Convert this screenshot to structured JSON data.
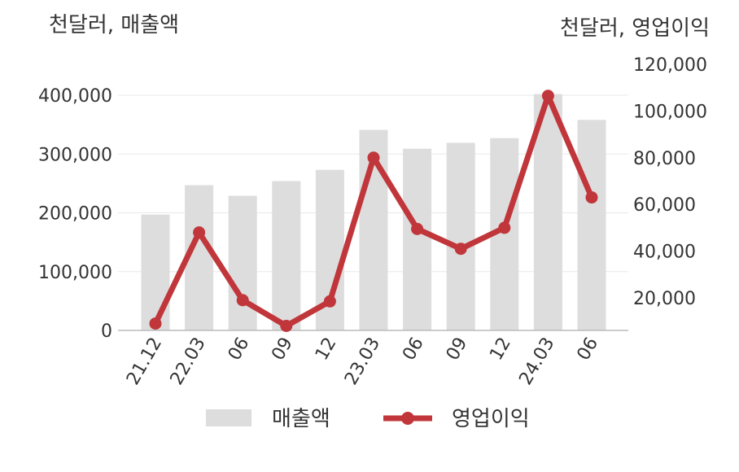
{
  "chart_data": {
    "type": "bar+line",
    "left_unit": "천달러, 매출액",
    "right_unit": "천달러, 영업이익",
    "categories": [
      "21.12",
      "22.03",
      "06",
      "09",
      "12",
      "23.03",
      "06",
      "09",
      "12",
      "24.03",
      "06"
    ],
    "series": [
      {
        "name": "매출액",
        "type": "bar",
        "axis": "left",
        "values": [
          197000,
          247000,
          229000,
          254000,
          273000,
          341000,
          309000,
          319000,
          327000,
          402000,
          358000
        ]
      },
      {
        "name": "영업이익",
        "type": "line",
        "axis": "right",
        "values": [
          9000,
          48000,
          19000,
          8000,
          18500,
          80000,
          49500,
          41000,
          50000,
          106500,
          63000
        ]
      }
    ],
    "left_axis": {
      "min": 0,
      "max": 400000,
      "ticks": [
        "0",
        "100,000",
        "200,000",
        "300,000",
        "400,000"
      ]
    },
    "right_axis": {
      "ticks": [
        "20,000",
        "40,000",
        "60,000",
        "80,000",
        "100,000",
        "120,000"
      ]
    },
    "legend_position": "bottom",
    "grid": true,
    "colors": {
      "bar": "#dddddd",
      "line": "#c0363a",
      "grid": "#e8e8e8",
      "axis": "#bbbbbb",
      "text": "#333333"
    }
  }
}
